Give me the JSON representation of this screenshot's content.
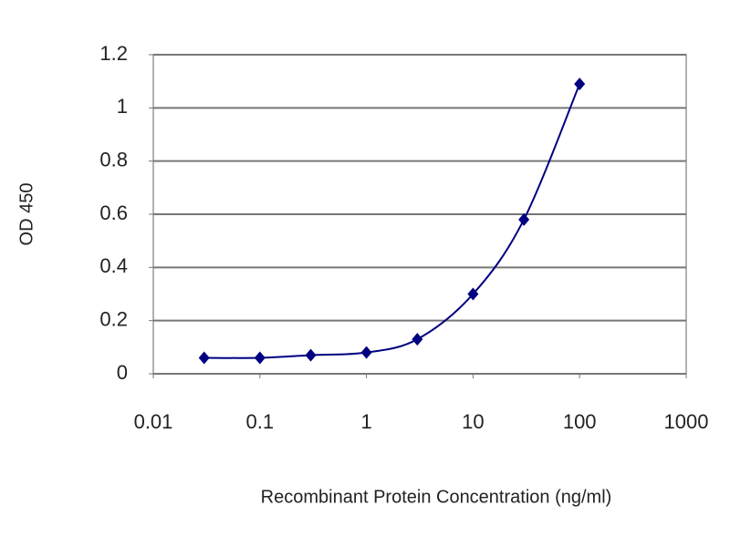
{
  "chart_data": {
    "type": "line",
    "x_label": "Recombinant Protein Concentration (ng/ml)",
    "y_label": "OD 450",
    "x": [
      0.03,
      0.1,
      0.3,
      1,
      3,
      10,
      30,
      100
    ],
    "values": [
      0.06,
      0.06,
      0.07,
      0.08,
      0.13,
      0.3,
      0.58,
      1.09
    ],
    "color": "#000080",
    "xlim": [
      0.01,
      1000
    ],
    "xticks": [
      0.01,
      0.1,
      1,
      10,
      100,
      1000
    ],
    "log_x": true,
    "ylim": [
      0,
      1.2
    ],
    "yticks": [
      0,
      0.2,
      0.4,
      0.6,
      0.8,
      1,
      1.2
    ],
    "grid": true
  }
}
